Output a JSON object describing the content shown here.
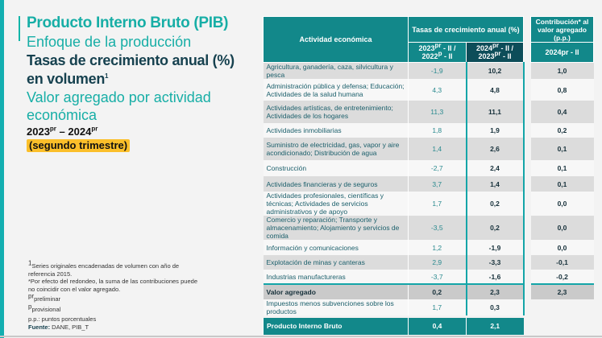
{
  "title": {
    "main": "Producto Interno Bruto (PIB)",
    "approach": "Enfoque de la producción",
    "metric_line1": "Tasas de crecimiento anual (%)",
    "metric_line2": "en volumen",
    "metric_sup": "1",
    "subtitle_line1": "Valor agregado por actividad",
    "subtitle_line2": "económica",
    "period_a": "2023",
    "period_a_sup": "pr",
    "period_sep": " – ",
    "period_b": "2024",
    "period_b_sup": "pr",
    "quarter": "(segundo trimestre)"
  },
  "notes": {
    "n1_sup": "1",
    "n1": "Series originales encadenadas de volumen con año de referencia 2015.",
    "n2": "*Por efecto del redondeo, la suma de las contribuciones puede no coincidir con el valor agregado.",
    "n3_sup": "pr",
    "n3": "preliminar",
    "n4_sup": "p",
    "n4": "provisional",
    "n5": "p.p.: puntos porcentuales",
    "source_label": "Fuente:",
    "source": " DANE, PIB_T"
  },
  "table": {
    "header_activity": "Actividad económica",
    "header_growth": "Tasas de crecimiento anual (%)",
    "header_contrib": "Contribución* al valor agregado (p.p.)",
    "col1": "2023pr - II / 2022p - II",
    "col2": "2024pr - II / 2023pr - II",
    "col3": "2024pr - II",
    "rows": [
      {
        "activity": "Agricultura, ganadería, caza, silvicultura y pesca",
        "g2023": "-1,9",
        "g2024": "10,2",
        "contrib": "1,0"
      },
      {
        "activity": "Administración pública y defensa; Educación; Actividades de la salud humana",
        "g2023": "4,3",
        "g2024": "4,8",
        "contrib": "0,8"
      },
      {
        "activity": "Actividades artísticas, de entretenimiento; Actividades de los hogares",
        "g2023": "11,3",
        "g2024": "11,1",
        "contrib": "0,4"
      },
      {
        "activity": "Actividades inmobiliarias",
        "g2023": "1,8",
        "g2024": "1,9",
        "contrib": "0,2"
      },
      {
        "activity": "Suministro de electricidad, gas, vapor y aire acondicionado; Distribución de agua",
        "g2023": "1,4",
        "g2024": "2,6",
        "contrib": "0,1"
      },
      {
        "activity": "Construcción",
        "g2023": "-2,7",
        "g2024": "2,4",
        "contrib": "0,1"
      },
      {
        "activity": "Actividades financieras y de seguros",
        "g2023": "3,7",
        "g2024": "1,4",
        "contrib": "0,1"
      },
      {
        "activity": "Actividades profesionales, científicas y técnicas; Actividades de servicios administrativos y de apoyo",
        "g2023": "1,7",
        "g2024": "0,2",
        "contrib": "0,0"
      },
      {
        "activity": "Comercio y reparación; Transporte y almacenamiento; Alojamiento y servicios de comida",
        "g2023": "-3,5",
        "g2024": "0,2",
        "contrib": "0,0"
      },
      {
        "activity": "Información y comunicaciones",
        "g2023": "1,2",
        "g2024": "-1,9",
        "contrib": "0,0"
      },
      {
        "activity": "Explotación de minas y canteras",
        "g2023": "2,9",
        "g2024": "-3,3",
        "contrib": "-0,1"
      },
      {
        "activity": "Industrias manufactureras",
        "g2023": "-3,7",
        "g2024": "-1,6",
        "contrib": "-0,2"
      },
      {
        "activity": "Valor agregado",
        "g2023": "0,2",
        "g2024": "2,3",
        "contrib": "2,3"
      },
      {
        "activity": "Impuestos menos subvenciones sobre los productos",
        "g2023": "1,7",
        "g2024": "0,3",
        "contrib": ""
      },
      {
        "activity": "Producto Interno Bruto",
        "g2023": "0,4",
        "g2024": "2,1",
        "contrib": ""
      }
    ]
  },
  "colors": {
    "teal": "#12888a",
    "dark_teal": "#0d4d59",
    "accent": "#17aea6",
    "highlight": "#fbbf2a"
  }
}
